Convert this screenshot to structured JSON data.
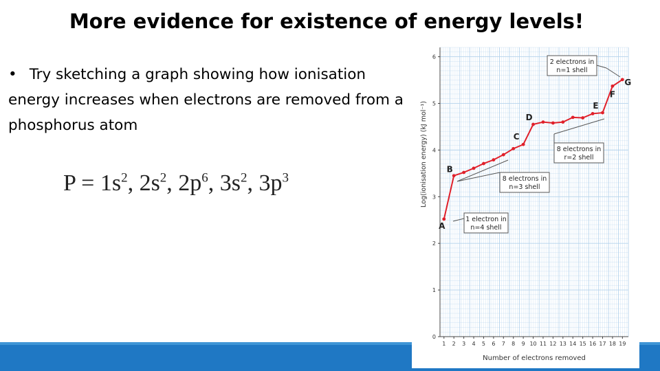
{
  "slide": {
    "title": "More evidence for existence of energy levels!",
    "bullet": "•",
    "bullet_text": "Try sketching a graph showing how ionisation energy increases when electrons are removed from a phosphorus atom",
    "formula": {
      "lhs": "P = ",
      "terms": [
        {
          "base": "1s",
          "sup": "2",
          "sep": ", "
        },
        {
          "base": "2s",
          "sup": "2",
          "sep": ", "
        },
        {
          "base": "2p",
          "sup": "6",
          "sep": ", "
        },
        {
          "base": "3s",
          "sup": "2",
          "sep": ", "
        },
        {
          "base": "3p",
          "sup": "3",
          "sep": ""
        }
      ]
    }
  },
  "colors": {
    "accent_blue": "#1f78c4",
    "series_red": "#e0202a",
    "grid_blue": "#b5d3ec"
  },
  "chart_data": {
    "type": "line",
    "xlabel": "Number of electrons removed",
    "ylabel": "Log(ionisation energy) (kJ mol⁻¹)",
    "x_ticks": [
      "1",
      "2",
      "3",
      "4",
      "5",
      "6",
      "7",
      "8",
      "9",
      "10",
      "11",
      "12",
      "13",
      "14",
      "15",
      "16",
      "17",
      "18",
      "19"
    ],
    "y_ticks": [
      "0",
      "1",
      "2",
      "3",
      "4",
      "5",
      "6"
    ],
    "xlim": [
      0.6,
      19.6
    ],
    "ylim": [
      0,
      6.2
    ],
    "grid": true,
    "series": [
      {
        "x": [
          1,
          2,
          3,
          4,
          5,
          6,
          7,
          8,
          9,
          10,
          11,
          12,
          13,
          14,
          15,
          16,
          17,
          18,
          19
        ],
        "values": [
          2.52,
          3.45,
          3.52,
          3.61,
          3.71,
          3.79,
          3.9,
          4.03,
          4.12,
          4.55,
          4.6,
          4.58,
          4.6,
          4.7,
          4.69,
          4.78,
          4.8,
          5.37,
          5.51
        ]
      }
    ],
    "point_labels": [
      {
        "text": "A",
        "x": 1
      },
      {
        "text": "B",
        "x": 2
      },
      {
        "text": "C",
        "x": 9
      },
      {
        "text": "D",
        "x": 10
      },
      {
        "text": "E",
        "x": 17
      },
      {
        "text": "F",
        "x": 18
      },
      {
        "text": "G",
        "x": 19
      }
    ],
    "annotations": [
      {
        "line1": "2 electrons in",
        "line2": "n=1 shell"
      },
      {
        "line1": "8 electrons in",
        "line2": "r=2 shell"
      },
      {
        "line1": "8 electrons in",
        "line2": "n=3 shell"
      },
      {
        "line1": "1 electron in",
        "line2": "n=4 shell"
      }
    ]
  }
}
